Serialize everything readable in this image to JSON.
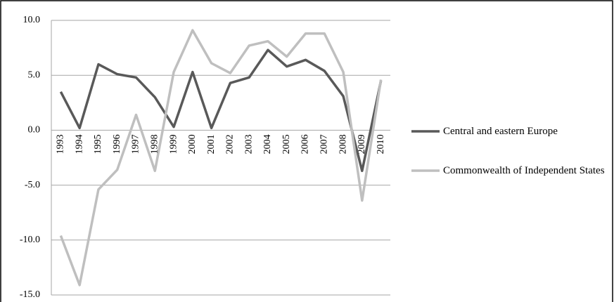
{
  "chart_data": {
    "type": "line",
    "categories": [
      "1993",
      "1994",
      "1995",
      "1996",
      "1997",
      "1998",
      "1999",
      "2000",
      "2001",
      "2002",
      "2003",
      "2004",
      "2005",
      "2006",
      "2007",
      "2008",
      "2009",
      "2010"
    ],
    "series": [
      {
        "name": "Central and eastern Europe",
        "color": "#595959",
        "values": [
          3.5,
          0.2,
          6.0,
          5.1,
          4.8,
          3.0,
          0.3,
          5.3,
          0.2,
          4.3,
          4.8,
          7.3,
          5.8,
          6.4,
          5.4,
          3.1,
          -3.7,
          4.5
        ]
      },
      {
        "name": "Commonwealth of Independent States",
        "color": "#bfbfbf",
        "values": [
          -9.6,
          -14.1,
          -5.4,
          -3.6,
          1.4,
          -3.7,
          5.3,
          9.1,
          6.1,
          5.2,
          7.7,
          8.1,
          6.7,
          8.8,
          8.8,
          5.3,
          -6.4,
          4.6
        ]
      }
    ],
    "ylim": [
      -15,
      10
    ],
    "yticks": [
      {
        "value": -15,
        "label": "-15.0"
      },
      {
        "value": -10,
        "label": "-10.0"
      },
      {
        "value": -5,
        "label": "-5.0"
      },
      {
        "value": 0,
        "label": "0.0"
      },
      {
        "value": 5,
        "label": "5.0"
      },
      {
        "value": 10,
        "label": "10.0"
      }
    ],
    "grid": true,
    "legend": "right"
  }
}
